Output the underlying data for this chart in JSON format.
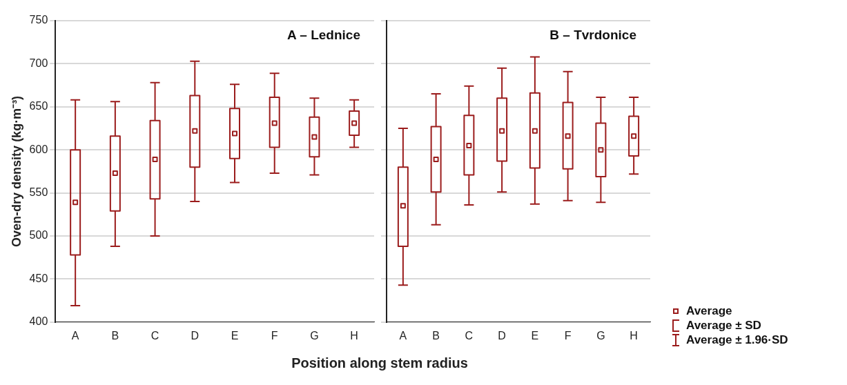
{
  "chart_data": [
    {
      "type": "box",
      "title": "A – Lednice",
      "ylabel": "Oven-dry density (kg·m⁻³)",
      "xlabel": "Position along stem radius",
      "categories": [
        "A",
        "B",
        "C",
        "D",
        "E",
        "F",
        "G",
        "H"
      ],
      "color": "#9b1c1c",
      "ylim": [
        400,
        750
      ],
      "yticks": [
        400,
        450,
        500,
        550,
        600,
        650,
        700,
        750
      ],
      "grid": "y",
      "boxes": [
        {
          "low": 419,
          "q1": 478,
          "median": 539,
          "q3": 600,
          "high": 658
        },
        {
          "low": 488,
          "q1": 529,
          "median": 573,
          "q3": 616,
          "high": 656
        },
        {
          "low": 500,
          "q1": 543,
          "median": 589,
          "q3": 634,
          "high": 678
        },
        {
          "low": 540,
          "q1": 580,
          "median": 622,
          "q3": 663,
          "high": 703
        },
        {
          "low": 562,
          "q1": 590,
          "median": 619,
          "q3": 648,
          "high": 676
        },
        {
          "low": 573,
          "q1": 603,
          "median": 631,
          "q3": 661,
          "high": 689
        },
        {
          "low": 571,
          "q1": 592,
          "median": 615,
          "q3": 638,
          "high": 660
        },
        {
          "low": 603,
          "q1": 617,
          "median": 631,
          "q3": 645,
          "high": 658
        }
      ]
    },
    {
      "type": "box",
      "title": "B – Tvrdonice",
      "categories": [
        "A",
        "B",
        "C",
        "D",
        "E",
        "F",
        "G",
        "H"
      ],
      "color": "#9b1c1c",
      "ylim": [
        400,
        750
      ],
      "yticks": [
        400,
        450,
        500,
        550,
        600,
        650,
        700,
        750
      ],
      "grid": "y",
      "tick_labels": "x",
      "annotations": [
        "Average",
        "Average ± SD",
        "Average ± 1.96·SD"
      ],
      "boxes": [
        {
          "low": 443,
          "q1": 488,
          "median": 535,
          "q3": 580,
          "high": 625
        },
        {
          "low": 513,
          "q1": 551,
          "median": 589,
          "q3": 627,
          "high": 665
        },
        {
          "low": 536,
          "q1": 571,
          "median": 605,
          "q3": 640,
          "high": 674
        },
        {
          "low": 551,
          "q1": 587,
          "median": 622,
          "q3": 660,
          "high": 695
        },
        {
          "low": 537,
          "q1": 579,
          "median": 622,
          "q3": 666,
          "high": 708
        },
        {
          "low": 541,
          "q1": 578,
          "median": 616,
          "q3": 655,
          "high": 691
        },
        {
          "low": 539,
          "q1": 569,
          "median": 600,
          "q3": 631,
          "high": 661
        },
        {
          "low": 572,
          "q1": 593,
          "median": 616,
          "q3": 639,
          "high": 661
        }
      ]
    }
  ]
}
